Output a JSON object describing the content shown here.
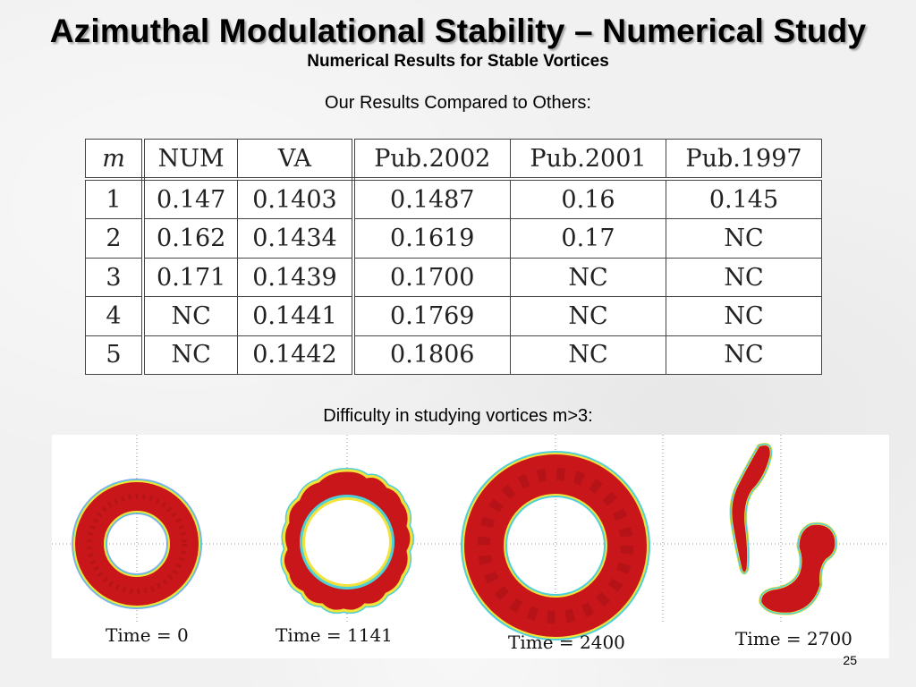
{
  "slide": {
    "title": "Azimuthal Modulational Stability – Numerical Study",
    "subtitle": "Numerical Results for Stable Vortices",
    "caption_table": "Our Results Compared to Others:",
    "caption_figure": "Difficulty in studying vortices m>3:",
    "page_number": "25"
  },
  "table": {
    "headers": [
      "m",
      "NUM",
      "VA",
      "Pub.2002",
      "Pub.2001",
      "Pub.1997"
    ],
    "rows": [
      [
        "1",
        "0.147",
        "0.1403",
        "0.1487",
        "0.16",
        "0.145"
      ],
      [
        "2",
        "0.162",
        "0.1434",
        "0.1619",
        "0.17",
        "NC"
      ],
      [
        "3",
        "0.171",
        "0.1439",
        "0.1700",
        "NC",
        "NC"
      ],
      [
        "4",
        "NC",
        "0.1441",
        "0.1769",
        "NC",
        "NC"
      ],
      [
        "5",
        "NC",
        "0.1442",
        "0.1806",
        "NC",
        "NC"
      ]
    ]
  },
  "figure": {
    "time_labels": [
      "Time = 0",
      "Time = 1141",
      "Time = 2400",
      "Time = 2700"
    ],
    "colors": {
      "density_core": "#c8161a",
      "density_dark": "#9a0f12",
      "edge_yellow": "#f2e23a",
      "edge_cyan": "#4fd0d8",
      "edge_blue": "#2b5bd6"
    }
  }
}
